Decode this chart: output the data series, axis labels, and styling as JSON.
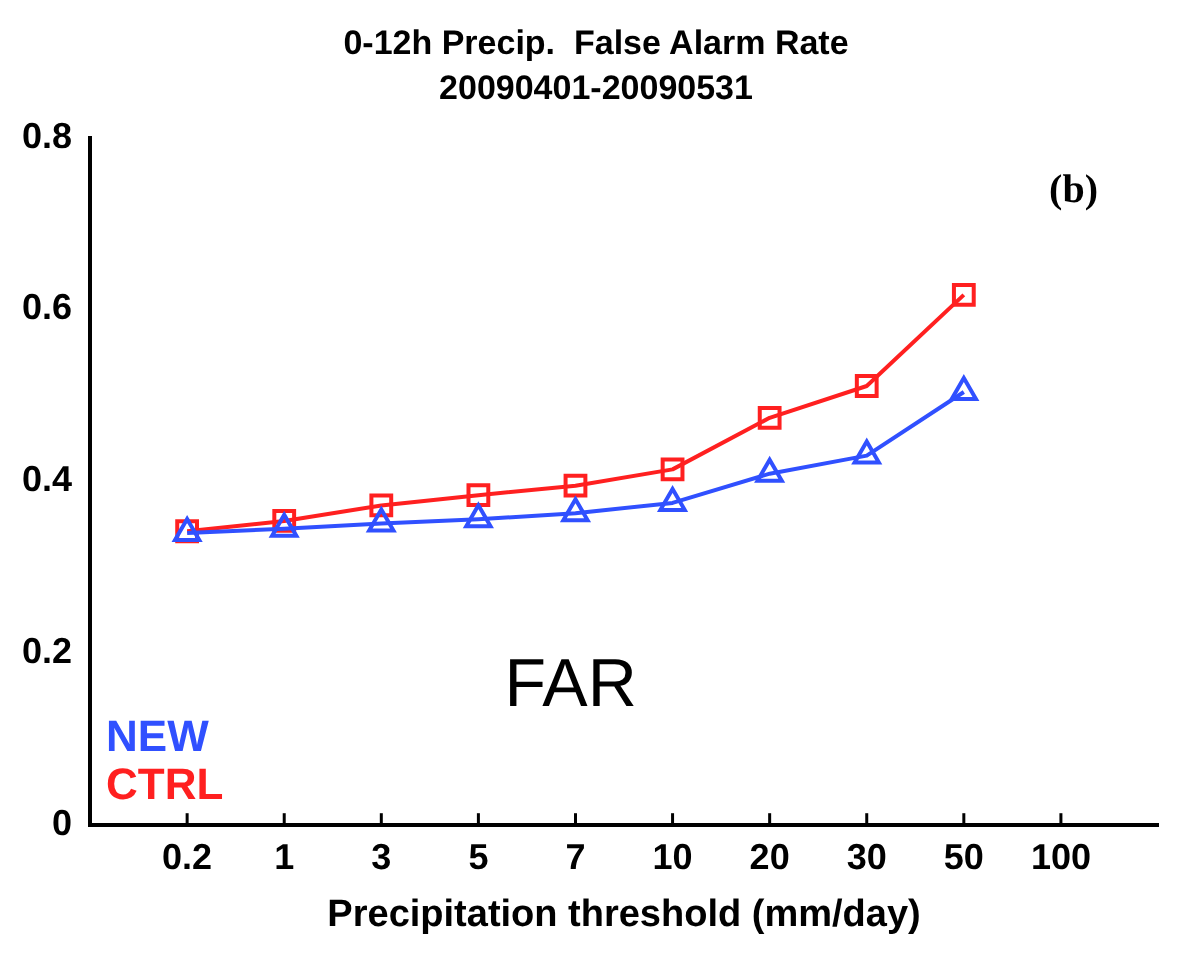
{
  "chart_data": {
    "type": "line",
    "title": "0-12h Precip.  False Alarm Rate",
    "subtitle": "20090401-20090531",
    "xlabel": "Precipitation threshold (mm/day)",
    "categories": [
      null,
      "0.2",
      "1",
      "3",
      "5",
      "7",
      "10",
      "20",
      "30",
      "50",
      "100",
      null
    ],
    "series": [
      {
        "name": "NEW",
        "color": "#3050ff",
        "marker": "triangle",
        "values": [
          null,
          0.34,
          0.345,
          0.351,
          0.356,
          0.363,
          0.375,
          0.409,
          0.43,
          0.504,
          null,
          null
        ]
      },
      {
        "name": "CTRL",
        "color": "#ff2020",
        "marker": "square",
        "values": [
          null,
          0.342,
          0.354,
          0.372,
          0.384,
          0.395,
          0.414,
          0.474,
          0.511,
          0.617,
          null,
          null
        ]
      }
    ],
    "ylim": [
      0,
      0.8
    ],
    "yticks": [
      0,
      0.2,
      0.4,
      0.6,
      0.8
    ],
    "grid": false,
    "legend": "bottom left",
    "annotations": [
      "(b)",
      "FAR"
    ]
  }
}
